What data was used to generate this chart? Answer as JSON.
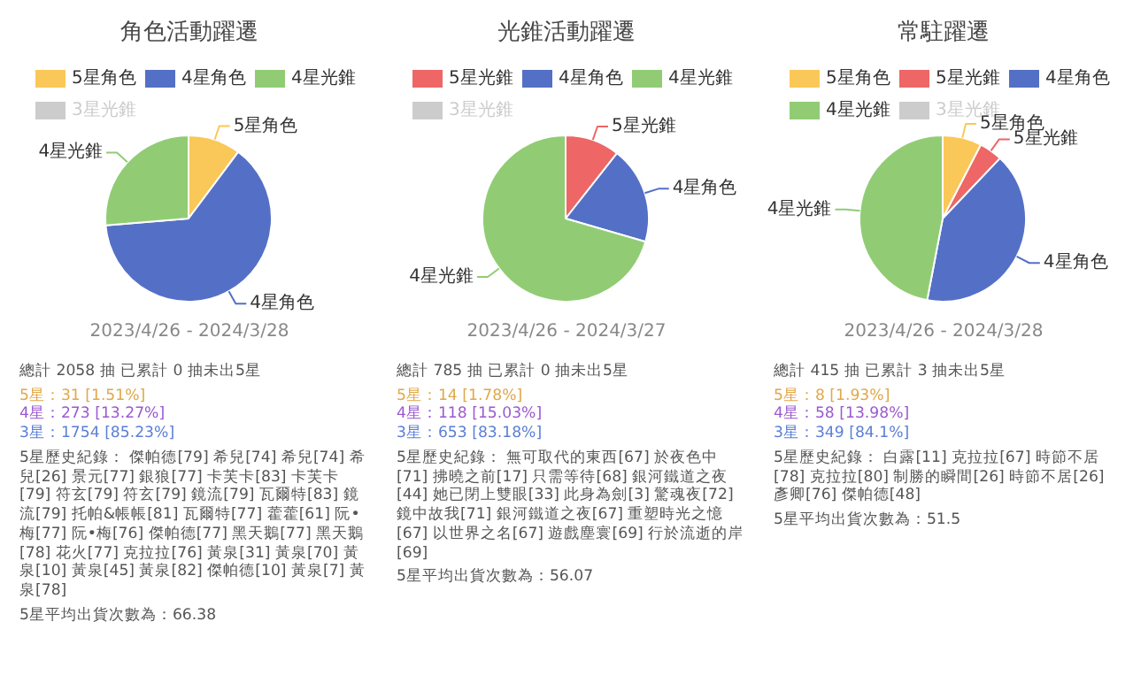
{
  "chart_data": [
    {
      "type": "pie",
      "title": "角色活動躍遷",
      "categories": [
        "5星角色",
        "4星角色",
        "4星光錐",
        "3星光錐"
      ],
      "values": [
        10.2,
        63.5,
        26.3,
        null
      ],
      "colors": [
        "#fac858",
        "#5470c6",
        "#91cc75",
        "#cccccc"
      ],
      "legend": "top",
      "annotations": [
        "2023/4/26 - 2024/3/28",
        "總計 2058 抽 已累計 0 抽未出5星",
        "5星：31 [1.51%]",
        "4星：273 [13.27%]",
        "3星：1754 [85.23%]",
        "5星歷史紀錄： 傑帕德[79] 希兒[74] 希兒[74] 希兒[26] 景元[77] 銀狼[77] 卡芙卡[83] 卡芙卡[79] 符玄[79] 符玄[79] 鏡流[79] 瓦爾特[83] 鏡流[79] 托帕&帳帳[81] 瓦爾特[77] 藿藿[61] 阮•梅[77] 阮•梅[76] 傑帕德[77] 黑天鵝[77] 黑天鵝[78] 花火[77] 克拉拉[76] 黃泉[31] 黃泉[70] 黃泉[10] 黃泉[45] 黃泉[82] 傑帕德[10] 黃泉[7] 黃泉[78]",
        "5星平均出貨次數為：66.38"
      ]
    },
    {
      "type": "pie",
      "title": "光錐活動躍遷",
      "categories": [
        "5星光錐",
        "4星角色",
        "4星光錐",
        "3星光錐"
      ],
      "values": [
        10.6,
        18.9,
        70.5,
        null
      ],
      "colors": [
        "#ee6666",
        "#5470c6",
        "#91cc75",
        "#cccccc"
      ],
      "legend": "top",
      "annotations": [
        "2023/4/26 - 2024/3/27",
        "總計 785 抽 已累計 0 抽未出5星",
        "5星：14 [1.78%]",
        "4星：118 [15.03%]",
        "3星：653 [83.18%]",
        "5星歷史紀錄： 無可取代的東西[67] 於夜色中[71] 拂曉之前[17] 只需等待[68] 銀河鐵道之夜[44] 她已閉上雙眼[33] 此身為劍[3] 驚魂夜[72] 鏡中故我[71] 銀河鐵道之夜[67] 重塑時光之憶[67] 以世界之名[67] 遊戲塵寰[69] 行於流逝的岸[69]",
        "5星平均出貨次數為：56.07"
      ]
    },
    {
      "type": "pie",
      "title": "常駐躍遷",
      "categories": [
        "5星角色",
        "5星光錐",
        "4星角色",
        "4星光錐",
        "3星光錐"
      ],
      "values": [
        7.6,
        4.5,
        40.9,
        47.0,
        null
      ],
      "colors": [
        "#fac858",
        "#ee6666",
        "#5470c6",
        "#91cc75",
        "#cccccc"
      ],
      "legend": "top",
      "annotations": [
        "2023/4/26 - 2024/3/28",
        "總計 415 抽 已累計 3 抽未出5星",
        "5星：8 [1.93%]",
        "4星：58 [13.98%]",
        "3星：349 [84.1%]",
        "5星歷史紀錄： 白露[11] 克拉拉[67] 時節不居[78] 克拉拉[80] 制勝的瞬間[26] 時節不居[26] 彥卿[76] 傑帕德[48]",
        "5星平均出貨次數為：51.5"
      ]
    }
  ]
}
